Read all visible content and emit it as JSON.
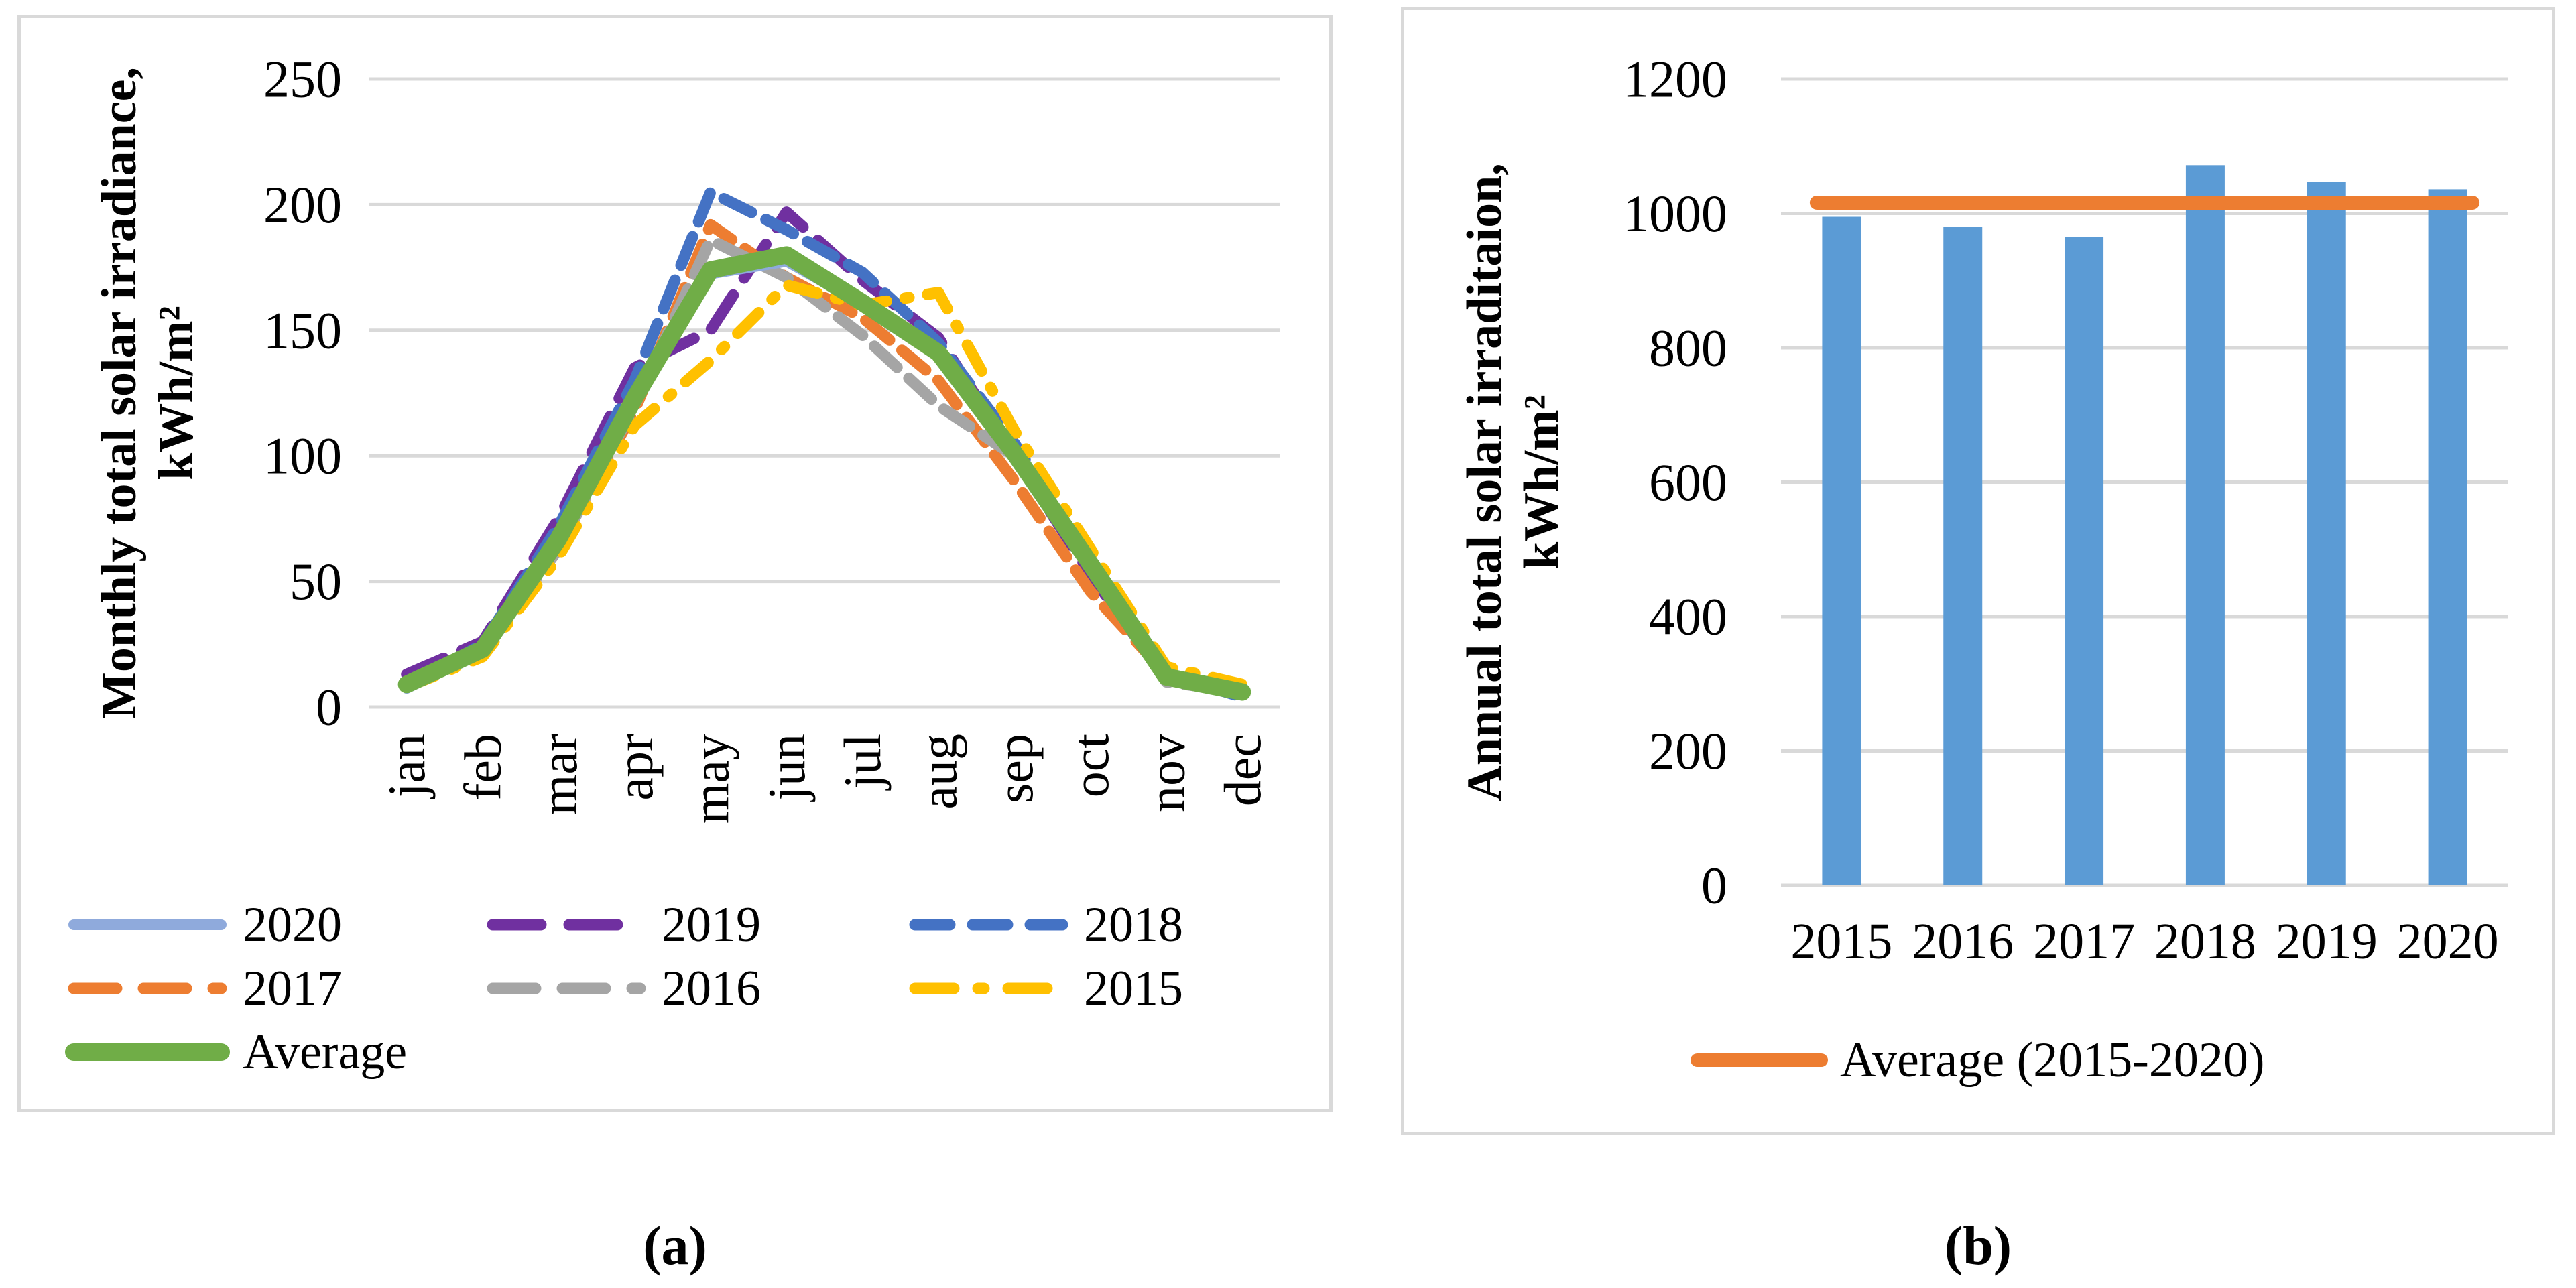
{
  "figure": {
    "caption_a": "(a)",
    "caption_b": "(b)"
  },
  "colors": {
    "background": "#ffffff",
    "panel_border": "#d9d9d9",
    "gridline": "#d9d9d9",
    "text": "#000000",
    "bar_fill": "#5B9BD5",
    "average_line_b": "#ED7D31"
  },
  "chart_data": [
    {
      "type": "line",
      "panel": "a",
      "ylabel_lines": [
        "Monthly total solar irradiance,",
        "kWh/m²"
      ],
      "categories": [
        "jan",
        "feb",
        "mar",
        "apr",
        "may",
        "jun",
        "jul",
        "aug",
        "sep",
        "oct",
        "nov",
        "dec"
      ],
      "ylim": [
        0,
        250
      ],
      "yticks": [
        0,
        50,
        100,
        150,
        200,
        250
      ],
      "grid": true,
      "legend_position": "bottom",
      "series": [
        {
          "name": "2020",
          "color": "#8FAADC",
          "dash": "solid",
          "width": 13,
          "dasharray": "",
          "legend_dasharray": "",
          "values": [
            7,
            22,
            66,
            122,
            172,
            177,
            160,
            142,
            100,
            58,
            13,
            6
          ]
        },
        {
          "name": "2019",
          "color": "#7030A0",
          "dash": "dash",
          "width": 17,
          "dasharray": "60 30",
          "legend_dasharray": "72 42",
          "values": [
            13,
            26,
            75,
            135,
            150,
            197,
            170,
            147,
            100,
            53,
            11,
            5
          ]
        },
        {
          "name": "2018",
          "color": "#4472C4",
          "dash": "dash",
          "width": 17,
          "dasharray": "46 24",
          "legend_dasharray": "52 34",
          "values": [
            8,
            25,
            72,
            130,
            205,
            190,
            173,
            145,
            105,
            58,
            13,
            4
          ]
        },
        {
          "name": "2017",
          "color": "#ED7D31",
          "dash": "dash",
          "width": 17,
          "dasharray": "46 24",
          "legend_dasharray": "64 40",
          "values": [
            10,
            22,
            64,
            118,
            192,
            171,
            155,
            130,
            90,
            46,
            13,
            7
          ]
        },
        {
          "name": "2016",
          "color": "#A5A5A5",
          "dash": "dash",
          "width": 17,
          "dasharray": "46 24",
          "legend_dasharray": "64 40",
          "values": [
            10,
            22,
            63,
            120,
            186,
            171,
            148,
            120,
            100,
            55,
            10,
            6
          ]
        },
        {
          "name": "2015",
          "color": "#FFC000",
          "dash": "dashdot",
          "width": 17,
          "dasharray": "44 28 6 28",
          "legend_dasharray": "58 36 9 36",
          "values": [
            8,
            20,
            60,
            112,
            138,
            168,
            160,
            165,
            110,
            63,
            16,
            9
          ]
        },
        {
          "name": "Average",
          "color": "#70AD47",
          "dash": "solid",
          "width": 26,
          "dasharray": "",
          "legend_dasharray": "",
          "values": [
            9,
            23,
            67,
            123,
            174,
            180,
            161,
            141,
            101,
            57,
            12,
            6
          ]
        }
      ]
    },
    {
      "type": "bar",
      "panel": "b",
      "ylabel_lines": [
        "Annual total solar irraditaion,",
        "kWh/m²"
      ],
      "categories": [
        "2015",
        "2016",
        "2017",
        "2018",
        "2019",
        "2020"
      ],
      "values": [
        995,
        980,
        965,
        1072,
        1047,
        1036
      ],
      "ylim": [
        0,
        1200
      ],
      "yticks": [
        0,
        200,
        400,
        600,
        800,
        1000,
        1200
      ],
      "grid": true,
      "legend_position": "bottom",
      "average_line": {
        "label": "Average (2015-2020)",
        "value": 1016
      }
    }
  ]
}
